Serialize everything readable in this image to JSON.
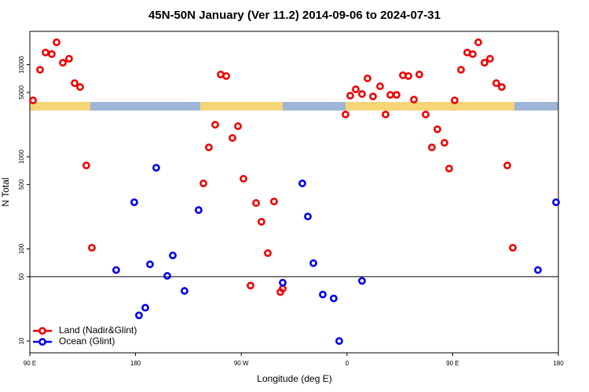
{
  "chart_data": {
    "type": "scatter",
    "title": "45N-50N January (Ver 11.2)   2014-09-06 to 2024-07-31",
    "x_label": "Longitude (deg E)",
    "y_label": "N Total",
    "log_y": true,
    "legend": "bottom-left",
    "xlim": [
      90,
      540
    ],
    "ylim": [
      7.45,
      23000
    ],
    "xticks": [
      {
        "value": 90,
        "label": "90 E"
      },
      180,
      {
        "value": 270,
        "label": "90 W"
      },
      {
        "value": 360,
        "label": "0"
      },
      {
        "value": 450,
        "label": "90 E"
      },
      {
        "value": 540,
        "label": "180"
      }
    ],
    "yticks": [
      10,
      50,
      100,
      500,
      1000,
      5000,
      10000
    ],
    "reference_line": 50,
    "series": [
      {
        "name": "Land (Nadir&Glint)",
        "color": "#ee0000",
        "x": [
          92.7,
          98.7,
          103.4,
          108.7,
          112.8,
          118.1,
          123.4,
          128.1,
          132.8,
          138.1,
          142.8,
          237.8,
          242.4,
          247.8,
          252.5,
          257.2,
          262.5,
          267.2,
          271.9,
          277.9,
          282.6,
          287.2,
          292.6,
          297.9,
          303.3,
          305.3,
          358.8,
          362.8,
          367.5,
          372.8,
          377.5,
          382.2,
          388.2,
          392.9,
          396.9,
          402.2,
          407.6,
          412.3,
          417,
          421.6,
          427,
          432.3,
          437,
          443,
          447,
          451.7,
          457.1,
          462.4,
          467.1,
          471.8,
          477.1,
          481.8,
          487.1,
          491.8,
          496.5,
          501.2
        ],
        "values": [
          4100,
          8800,
          13550,
          13030,
          17500,
          10500,
          11600,
          6300,
          5720,
          805,
          103,
          514,
          1265,
          2230,
          7830,
          7530,
          1600,
          2150,
          578,
          40,
          315,
          197,
          90,
          327,
          34,
          37,
          2880,
          4610,
          5400,
          4800,
          7100,
          4520,
          5830,
          2880,
          4700,
          4700,
          7680,
          7530,
          4180,
          7830,
          2880,
          1265,
          1990,
          1420,
          745,
          4100,
          8800,
          13550,
          13030,
          17500,
          10500,
          11600,
          6300,
          5720,
          805,
          103
        ]
      },
      {
        "name": "Ocean (Glint)",
        "color": "#0000ee",
        "x": [
          163.5,
          178.9,
          182.9,
          188.3,
          192.3,
          197.6,
          207,
          211.7,
          221.7,
          233.7,
          305.3,
          322,
          326.7,
          331.4,
          339.4,
          348.7,
          353.4,
          372.8,
          522.6,
          538
        ],
        "values": [
          59,
          321,
          19,
          23,
          68,
          760,
          51,
          85,
          35,
          264,
          43,
          514,
          225,
          70,
          32,
          29,
          10,
          45,
          59,
          321
        ]
      }
    ]
  }
}
